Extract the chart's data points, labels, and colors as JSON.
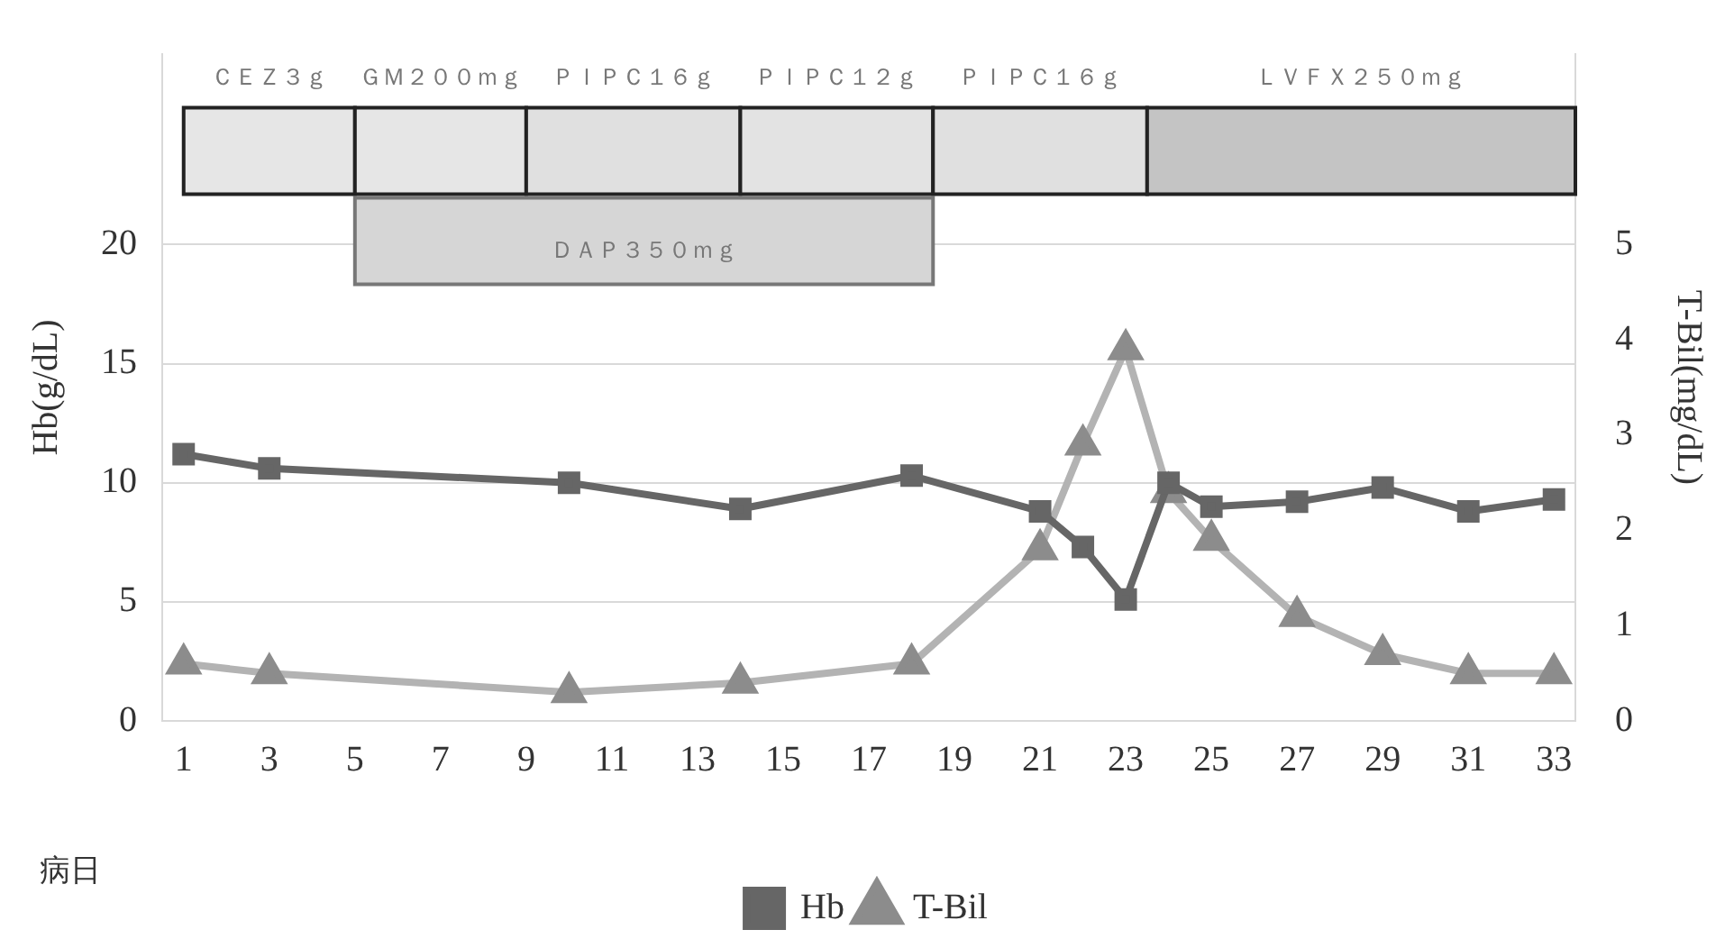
{
  "chart_data": {
    "type": "line",
    "xlabel": "病日",
    "ylabel": "Hb(g/dL)",
    "y2label": "T-Bil(mg/dL)",
    "xlim": [
      0.5,
      33.5
    ],
    "xticks": [
      1,
      3,
      5,
      7,
      9,
      11,
      13,
      15,
      17,
      19,
      21,
      23,
      25,
      27,
      29,
      31,
      33
    ],
    "ylim": [
      0,
      28
    ],
    "yticks": [
      0,
      5,
      10,
      15,
      20
    ],
    "y2lim": [
      0,
      7
    ],
    "y2ticks": [
      0,
      1,
      2,
      3,
      4,
      5
    ],
    "grid": "y",
    "legend": "bottom",
    "line_style": "solid",
    "series": [
      {
        "name": "Hb",
        "color": "#666666",
        "marker": "square",
        "x": [
          1,
          3,
          10,
          14,
          18,
          21,
          22,
          23,
          24,
          25,
          27,
          29,
          31,
          33
        ],
        "values": [
          11.2,
          10.6,
          10.0,
          8.9,
          10.3,
          8.8,
          7.3,
          5.1,
          10.0,
          9.0,
          9.2,
          9.8,
          8.8,
          9.3
        ]
      },
      {
        "name": "T-Bil",
        "color": "#b3b3b3",
        "marker": "triangle",
        "axis": "y2",
        "x": [
          1,
          3,
          10,
          14,
          18,
          21,
          22,
          23,
          24,
          25,
          27,
          29,
          31,
          33
        ],
        "values": [
          0.6,
          0.5,
          0.3,
          0.4,
          0.6,
          1.8,
          2.9,
          3.9,
          2.4,
          1.9,
          1.1,
          0.7,
          0.5,
          0.5
        ]
      }
    ],
    "bands": [
      {
        "axis": "x",
        "from": 1,
        "to": 5,
        "label": "ＣＥＺ３ｇ",
        "color": "#e6e6e6"
      },
      {
        "axis": "x",
        "from": 5,
        "to": 9,
        "label": "ＧＭ２００ｍｇ",
        "color": "#e6e6e6"
      },
      {
        "axis": "x",
        "from": 9,
        "to": 14,
        "label": "ＰＩＰＣ１６ｇ",
        "color": "#e0e0e0"
      },
      {
        "axis": "x",
        "from": 14,
        "to": 18.5,
        "label": "ＰＩＰＣ１２ｇ",
        "color": "#e3e3e3"
      },
      {
        "axis": "x",
        "from": 18.5,
        "to": 23.5,
        "label": "ＰＩＰＣ１６ｇ",
        "color": "#e0e0e0"
      },
      {
        "axis": "x",
        "from": 23.5,
        "to": 33.5,
        "label": "ＬＶＦＸ２５０ｍｇ",
        "color": "#c4c4c4"
      },
      {
        "axis": "x",
        "from": 5,
        "to": 18.5,
        "label": "ＤＡＰ３５０ｍｇ",
        "color": "#d6d6d6"
      }
    ]
  }
}
